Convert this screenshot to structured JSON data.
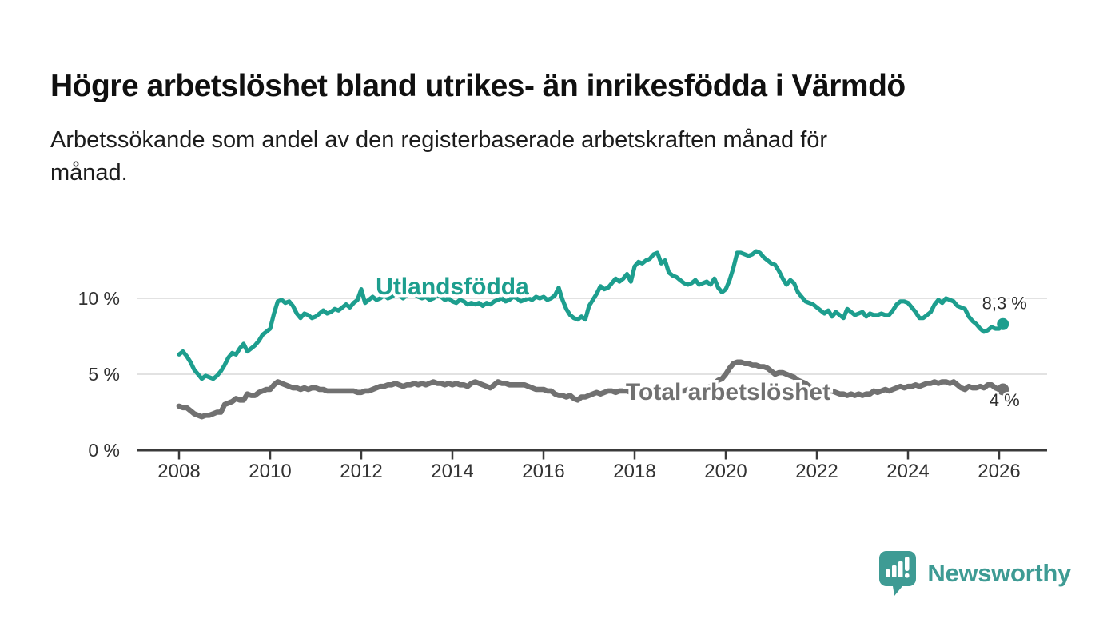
{
  "title": "Högre arbetslöshet bland utrikes- än inrikesfödda i Värmdö",
  "subtitle": {
    "lines": [
      "Arbetssökande som andel av den registerbaserade arbetskraften månad för",
      "månad."
    ]
  },
  "branding": {
    "name": "Newsworthy",
    "icon": "speech-bubble-bar-chart-icon",
    "color": "#3e9b94"
  },
  "colors": {
    "accent_teal": "#1d9e8e",
    "series_gray": "#717171",
    "axis": "#3a3a3a",
    "grid": "#d9d9d9",
    "tick_text": "#333333",
    "end_label_text": "#2e2e2e"
  },
  "chart_data": {
    "type": "line",
    "title": "Högre arbetslöshet bland utrikes- än inrikesfödda i Värmdö",
    "subtitle": "Arbetssökande som andel av den registerbaserade arbetskraften månad för månad.",
    "x_unit": "month",
    "x_start_year": 2008,
    "points_per_year": 12,
    "x_tick_labels": [
      "2008",
      "2010",
      "2012",
      "2014",
      "2016",
      "2018",
      "2020",
      "2022",
      "2024",
      "2026"
    ],
    "y_tick_labels": [
      "0 %",
      "5 %",
      "10 %"
    ],
    "y_ticks": [
      0,
      5,
      10
    ],
    "ylim": [
      0,
      14.5
    ],
    "grid": "horizontal-only",
    "legend": "inline-labels",
    "series": [
      {
        "name": "Utlandsfödda",
        "color": "#1d9e8e",
        "end_label": "8,3 %",
        "end_value": 8.3,
        "values": [
          6.3,
          6.5,
          6.2,
          5.8,
          5.3,
          5.0,
          4.7,
          4.9,
          4.8,
          4.7,
          4.9,
          5.2,
          5.6,
          6.1,
          6.4,
          6.3,
          6.7,
          7.0,
          6.5,
          6.7,
          6.9,
          7.2,
          7.6,
          7.8,
          8.0,
          9.0,
          9.8,
          9.9,
          9.7,
          9.8,
          9.5,
          9.0,
          8.7,
          9.0,
          8.9,
          8.7,
          8.8,
          9.0,
          9.2,
          9.0,
          9.1,
          9.3,
          9.2,
          9.4,
          9.6,
          9.4,
          9.7,
          9.9,
          10.6,
          9.7,
          9.9,
          10.1,
          9.9,
          10.0,
          10.2,
          10.0,
          10.1,
          10.3,
          10.2,
          10.0,
          10.2,
          10.4,
          10.3,
          10.1,
          10.0,
          10.1,
          9.9,
          10.0,
          10.2,
          10.1,
          9.9,
          10.0,
          9.8,
          9.7,
          9.9,
          9.8,
          9.6,
          9.7,
          9.6,
          9.7,
          9.5,
          9.7,
          9.6,
          9.8,
          9.9,
          10.0,
          9.8,
          9.9,
          10.1,
          10.0,
          9.8,
          9.9,
          10.0,
          9.9,
          10.1,
          10.0,
          10.1,
          9.9,
          10.0,
          10.2,
          10.7,
          9.9,
          9.3,
          8.9,
          8.7,
          8.6,
          8.8,
          8.6,
          9.5,
          9.9,
          10.3,
          10.8,
          10.6,
          10.7,
          11.0,
          11.3,
          11.1,
          11.3,
          11.6,
          11.1,
          12.1,
          12.4,
          12.3,
          12.5,
          12.6,
          12.9,
          13.0,
          12.3,
          12.5,
          11.7,
          11.5,
          11.4,
          11.2,
          11.0,
          10.9,
          11.0,
          11.2,
          10.9,
          11.0,
          11.1,
          10.9,
          11.3,
          10.7,
          10.4,
          10.6,
          11.2,
          12.0,
          13.0,
          13.0,
          12.9,
          12.8,
          12.9,
          13.1,
          13.0,
          12.7,
          12.5,
          12.3,
          12.2,
          11.8,
          11.3,
          10.9,
          11.2,
          11.0,
          10.4,
          10.1,
          9.8,
          9.7,
          9.6,
          9.4,
          9.2,
          9.0,
          9.2,
          8.8,
          9.1,
          8.9,
          8.7,
          9.3,
          9.1,
          8.9,
          9.0,
          9.1,
          8.8,
          9.0,
          8.9,
          8.9,
          9.0,
          8.9,
          8.9,
          9.2,
          9.6,
          9.8,
          9.8,
          9.7,
          9.4,
          9.1,
          8.7,
          8.7,
          8.9,
          9.1,
          9.6,
          9.9,
          9.7,
          10.0,
          9.9,
          9.8,
          9.5,
          9.4,
          9.3,
          8.8,
          8.5,
          8.3,
          8.0,
          7.8,
          7.9,
          8.1,
          8.0,
          8.0,
          8.3
        ]
      },
      {
        "name": "Total arbetslöshet",
        "color": "#717171",
        "end_label": "4 %",
        "end_value": 4,
        "values": [
          2.9,
          2.8,
          2.8,
          2.6,
          2.4,
          2.3,
          2.2,
          2.3,
          2.3,
          2.4,
          2.5,
          2.5,
          3.0,
          3.1,
          3.2,
          3.4,
          3.3,
          3.3,
          3.7,
          3.6,
          3.6,
          3.8,
          3.9,
          4.0,
          4.0,
          4.3,
          4.5,
          4.4,
          4.3,
          4.2,
          4.1,
          4.1,
          4.0,
          4.1,
          4.0,
          4.1,
          4.1,
          4.0,
          4.0,
          3.9,
          3.9,
          3.9,
          3.9,
          3.9,
          3.9,
          3.9,
          3.9,
          3.8,
          3.8,
          3.9,
          3.9,
          4.0,
          4.1,
          4.2,
          4.2,
          4.3,
          4.3,
          4.4,
          4.3,
          4.2,
          4.3,
          4.3,
          4.4,
          4.3,
          4.4,
          4.3,
          4.4,
          4.5,
          4.4,
          4.4,
          4.3,
          4.4,
          4.3,
          4.4,
          4.3,
          4.3,
          4.2,
          4.4,
          4.5,
          4.4,
          4.3,
          4.2,
          4.1,
          4.3,
          4.5,
          4.4,
          4.4,
          4.3,
          4.3,
          4.3,
          4.3,
          4.3,
          4.2,
          4.1,
          4.0,
          4.0,
          4.0,
          3.9,
          3.9,
          3.7,
          3.6,
          3.6,
          3.5,
          3.6,
          3.4,
          3.3,
          3.5,
          3.5,
          3.6,
          3.7,
          3.8,
          3.7,
          3.8,
          3.9,
          3.9,
          3.8,
          3.9,
          3.9,
          3.9,
          3.8,
          3.9,
          3.8,
          3.8,
          3.8,
          3.9,
          3.8,
          3.8,
          3.8,
          3.9,
          3.8,
          3.9,
          3.9,
          3.9,
          3.9,
          4.0,
          3.9,
          4.0,
          4.0,
          4.1,
          4.1,
          4.2,
          4.4,
          4.6,
          4.7,
          5.0,
          5.4,
          5.7,
          5.8,
          5.8,
          5.7,
          5.7,
          5.6,
          5.6,
          5.5,
          5.5,
          5.4,
          5.2,
          5.0,
          5.1,
          5.1,
          5.0,
          4.9,
          4.8,
          4.6,
          4.5,
          4.4,
          4.2,
          4.1,
          4.0,
          3.9,
          3.9,
          3.9,
          3.9,
          3.8,
          3.7,
          3.7,
          3.6,
          3.7,
          3.6,
          3.7,
          3.6,
          3.7,
          3.7,
          3.9,
          3.8,
          3.9,
          4.0,
          3.9,
          4.0,
          4.1,
          4.2,
          4.1,
          4.2,
          4.2,
          4.3,
          4.2,
          4.3,
          4.4,
          4.4,
          4.5,
          4.4,
          4.5,
          4.5,
          4.4,
          4.5,
          4.3,
          4.1,
          4.0,
          4.2,
          4.1,
          4.1,
          4.2,
          4.1,
          4.3,
          4.3,
          4.1,
          4.0,
          4.0
        ]
      }
    ]
  }
}
